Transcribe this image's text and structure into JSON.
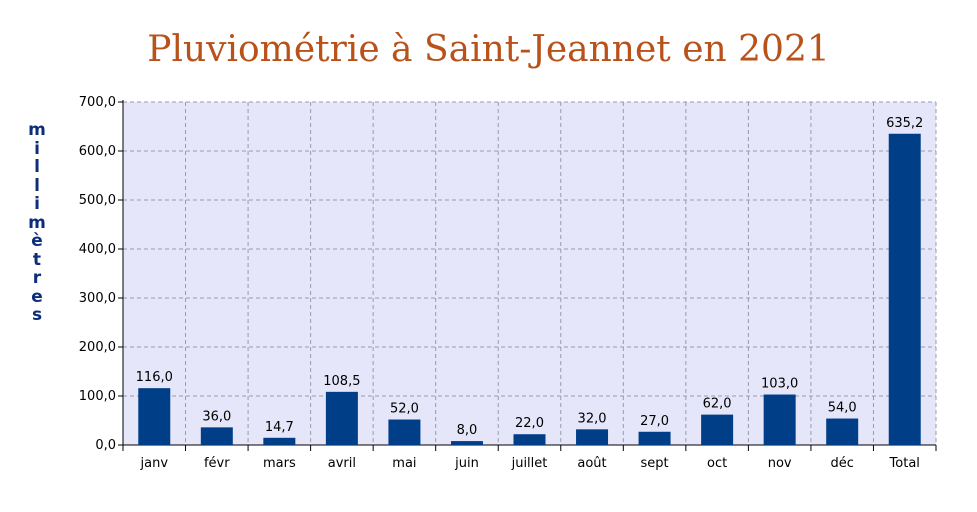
{
  "chart_data": {
    "type": "bar",
    "title": "Pluviométrie à Saint-Jeannet en 2021",
    "ylabel": "millimètres",
    "xlabel": "",
    "categories": [
      "janv",
      "févr",
      "mars",
      "avril",
      "mai",
      "juin",
      "juillet",
      "août",
      "sept",
      "oct",
      "nov",
      "déc",
      "Total"
    ],
    "values": [
      116.0,
      36.0,
      14.7,
      108.5,
      52.0,
      8.0,
      22.0,
      32.0,
      27.0,
      62.0,
      103.0,
      54.0,
      635.2
    ],
    "value_labels": [
      "116,0",
      "36,0",
      "14,7",
      "108,5",
      "52,0",
      "8,0",
      "22,0",
      "32,0",
      "27,0",
      "62,0",
      "103,0",
      "54,0",
      "635,2"
    ],
    "yticks": [
      0,
      100,
      200,
      300,
      400,
      500,
      600,
      700
    ],
    "ytick_labels": [
      "0,0",
      "100,0",
      "200,0",
      "300,0",
      "400,0",
      "500,0",
      "600,0",
      "700,0"
    ],
    "ylim": [
      0,
      700
    ],
    "grid": true,
    "legend": "none",
    "colors": {
      "bar": "#003F87",
      "plot_background": "#E6E6FA",
      "grid": "#9A9AAE",
      "title": "#B8521A",
      "ylabel": "#0B2D7A"
    }
  }
}
